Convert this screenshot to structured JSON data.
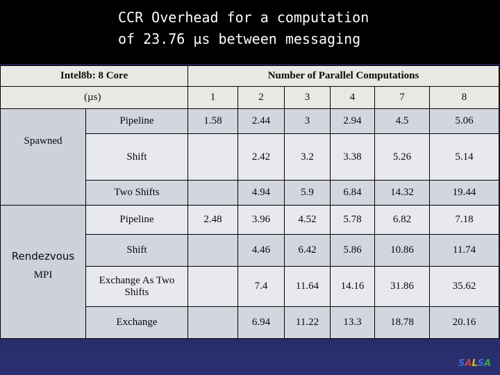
{
  "title": {
    "line1": "CCR Overhead for a computation",
    "line2": "of 23.76 µs between messaging"
  },
  "table": {
    "corner_top": "Intel8b: 8 Core",
    "corner_unit": "(µs)",
    "group_header": "Number of Parallel Computations",
    "columns": [
      "1",
      "2",
      "3",
      "4",
      "7",
      "8"
    ],
    "groups": [
      {
        "label": "Spawned",
        "rows": [
          {
            "name": "Pipeline",
            "values": [
              "1.58",
              "2.44",
              "3",
              "2.94",
              "4.5",
              "5.06"
            ]
          },
          {
            "name": "Shift",
            "values": [
              "",
              "2.42",
              "3.2",
              "3.38",
              "5.26",
              "5.14"
            ]
          },
          {
            "name": "Two Shifts",
            "values": [
              "",
              "4.94",
              "5.9",
              "6.84",
              "14.32",
              "19.44"
            ]
          }
        ]
      },
      {
        "label1": "Rendezvous",
        "label2": "MPI",
        "rows": [
          {
            "name": "Pipeline",
            "values": [
              "2.48",
              "3.96",
              "4.52",
              "5.78",
              "6.82",
              "7.18"
            ]
          },
          {
            "name": "Shift",
            "values": [
              "",
              "4.46",
              "6.42",
              "5.86",
              "10.86",
              "11.74"
            ]
          },
          {
            "name": "Exchange As Two Shifts",
            "values": [
              "",
              "7.4",
              "11.64",
              "14.16",
              "31.86",
              "35.62"
            ]
          },
          {
            "name": "Exchange",
            "values": [
              "",
              "6.94",
              "11.22",
              "13.3",
              "18.78",
              "20.16"
            ]
          }
        ]
      }
    ]
  },
  "logo": {
    "letters": [
      "S",
      "A",
      "L",
      "S",
      "A"
    ]
  },
  "colors": {
    "background": "#1e2454",
    "title_bar": "#000000",
    "row_dark": "#d3d5df",
    "row_light": "#e8e9ee"
  }
}
